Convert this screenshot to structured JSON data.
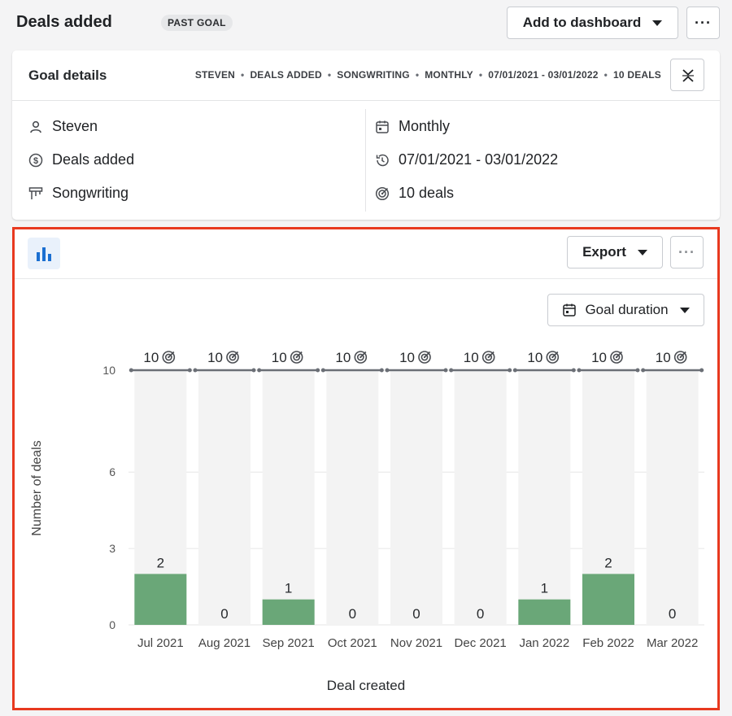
{
  "header": {
    "title": "Deals added",
    "badge": "PAST GOAL",
    "add_button": "Add to dashboard",
    "more_icon": "more-horizontal-icon"
  },
  "goal_card": {
    "title": "Goal details",
    "crumbs": [
      "STEVEN",
      "DEALS ADDED",
      "SONGWRITING",
      "MONTHLY",
      "07/01/2021 - 03/01/2022",
      "10 DEALS"
    ],
    "left_details": [
      {
        "icon": "user-icon",
        "text": "Steven"
      },
      {
        "icon": "dollar-icon",
        "text": "Deals added"
      },
      {
        "icon": "pipeline-icon",
        "text": "Songwriting"
      }
    ],
    "right_details": [
      {
        "icon": "calendar-icon",
        "text": "Monthly"
      },
      {
        "icon": "history-icon",
        "text": "07/01/2021 - 03/01/2022"
      },
      {
        "icon": "target-icon",
        "text": "10 deals"
      }
    ]
  },
  "panel": {
    "export_button": "Export",
    "duration_button": "Goal duration"
  },
  "chart_data": {
    "type": "bar",
    "categories": [
      "Jul 2021",
      "Aug 2021",
      "Sep 2021",
      "Oct 2021",
      "Nov 2021",
      "Dec 2021",
      "Jan 2022",
      "Feb 2022",
      "Mar 2022"
    ],
    "values": [
      2,
      0,
      1,
      0,
      0,
      0,
      1,
      2,
      0
    ],
    "goal": 10,
    "goal_label": "10",
    "xlabel": "Deal created",
    "ylabel": "Number of deals",
    "yticks": [
      0,
      3,
      6,
      10
    ],
    "ylim": [
      0,
      10
    ],
    "bar_color": "#6aa778",
    "track_color": "#f3f3f3",
    "goal_line_color": "#6b6f76"
  }
}
